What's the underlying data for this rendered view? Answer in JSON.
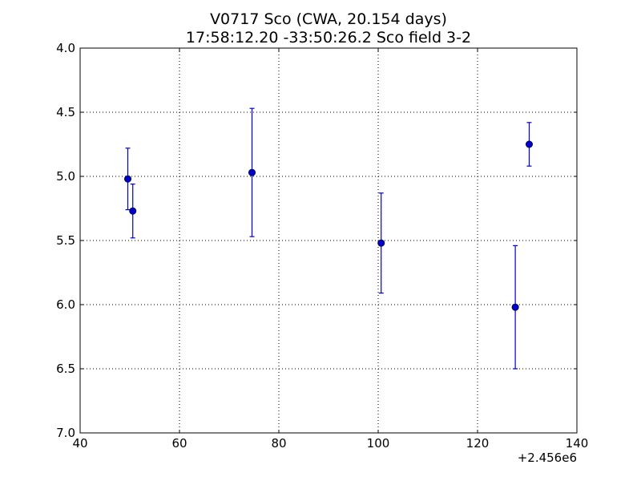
{
  "chart_data": {
    "type": "scatter",
    "title": "V0717 Sco (CWA, 20.154 days)",
    "subtitle": "17:58:12.20 -33:50:26.2 Sco field 3-2",
    "xlabel": "",
    "ylabel": "",
    "x_offset_label": "+2.456e6",
    "xlim": [
      40,
      140
    ],
    "ylim": [
      7.0,
      4.0
    ],
    "y_inverted": true,
    "grid": true,
    "x_ticks": [
      40,
      60,
      80,
      100,
      120,
      140
    ],
    "y_ticks": [
      4.0,
      4.5,
      5.0,
      5.5,
      6.0,
      6.5,
      7.0
    ],
    "x_tick_labels": [
      "40",
      "60",
      "80",
      "100",
      "120",
      "140"
    ],
    "y_tick_labels": [
      "4.0",
      "4.5",
      "5.0",
      "5.5",
      "6.0",
      "6.5",
      "7.0"
    ],
    "series": [
      {
        "color": "#0000cc",
        "points": [
          {
            "x": 49.6,
            "y": 5.02,
            "err": 0.24
          },
          {
            "x": 50.6,
            "y": 5.27,
            "err": 0.21
          },
          {
            "x": 74.6,
            "y": 4.97,
            "err": 0.5
          },
          {
            "x": 100.6,
            "y": 5.52,
            "err": 0.39
          },
          {
            "x": 127.6,
            "y": 6.02,
            "err": 0.48
          },
          {
            "x": 130.4,
            "y": 4.75,
            "err": 0.17
          }
        ]
      }
    ]
  }
}
